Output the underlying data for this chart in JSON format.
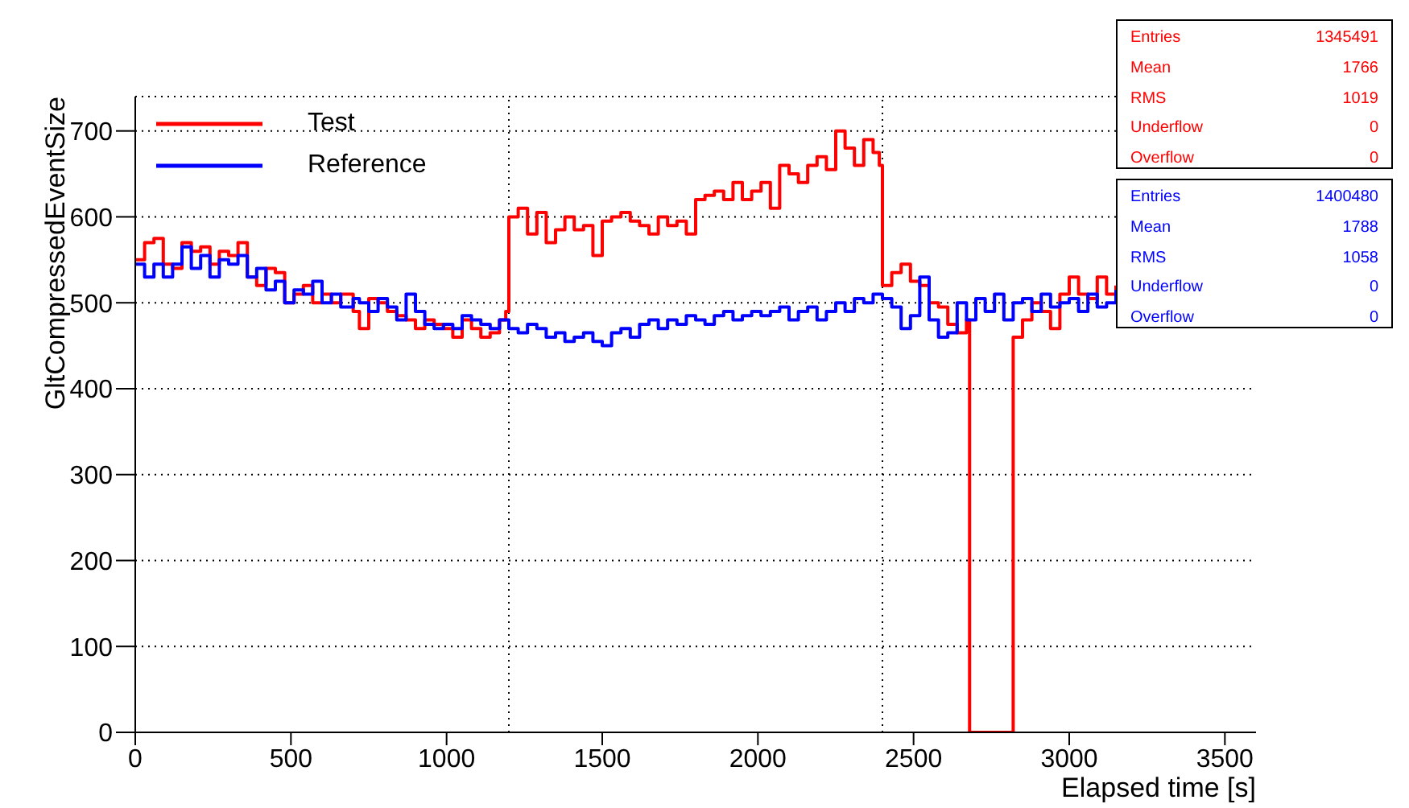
{
  "chart_data": {
    "type": "step",
    "xlabel": "Elapsed time [s]",
    "ylabel": "GltCompressedEventSize",
    "xlim": [
      0,
      3600
    ],
    "xticks": [
      0,
      500,
      1000,
      1500,
      2000,
      2500,
      3000,
      3500
    ],
    "ylim": [
      0,
      740
    ],
    "yticks": [
      0,
      100,
      200,
      300,
      400,
      500,
      600,
      700
    ],
    "grid": "y",
    "legend": "top left",
    "line_style": "solid",
    "marker": "none",
    "ref_lines": [
      {
        "axis": "x",
        "value": 1200,
        "line_style": "dotted",
        "color": "#000000"
      },
      {
        "axis": "x",
        "value": 2400,
        "line_style": "dotted",
        "color": "#000000"
      }
    ],
    "annotations": [
      "Entries 1345491",
      "Mean 1766",
      "RMS 1019",
      "Underflow 0",
      "Overflow 0",
      "Entries 1400480",
      "Mean 1788",
      "RMS 1058",
      "Underflow 0",
      "Overflow 0"
    ],
    "series": [
      {
        "name": "Test",
        "color": "#ff0000",
        "x": [
          0,
          30,
          60,
          90,
          120,
          150,
          180,
          210,
          240,
          270,
          300,
          330,
          360,
          390,
          420,
          450,
          480,
          510,
          540,
          570,
          600,
          630,
          660,
          700,
          720,
          750,
          780,
          810,
          840,
          870,
          900,
          930,
          960,
          990,
          1020,
          1050,
          1080,
          1110,
          1140,
          1170,
          1190,
          1200,
          1230,
          1260,
          1290,
          1320,
          1350,
          1380,
          1410,
          1440,
          1470,
          1500,
          1530,
          1560,
          1590,
          1620,
          1650,
          1680,
          1710,
          1740,
          1770,
          1800,
          1830,
          1860,
          1890,
          1920,
          1950,
          1980,
          2010,
          2040,
          2070,
          2100,
          2130,
          2160,
          2190,
          2220,
          2250,
          2280,
          2310,
          2340,
          2370,
          2390,
          2400,
          2430,
          2460,
          2490,
          2520,
          2550,
          2580,
          2610,
          2640,
          2670,
          2680,
          2820,
          2850,
          2880,
          2910,
          2940,
          2970,
          3000,
          3030,
          3060,
          3090,
          3120,
          3150
        ],
        "values": [
          550,
          570,
          575,
          545,
          540,
          570,
          560,
          565,
          545,
          560,
          555,
          570,
          530,
          520,
          540,
          535,
          500,
          510,
          520,
          500,
          510,
          500,
          510,
          490,
          470,
          505,
          500,
          490,
          485,
          480,
          470,
          480,
          475,
          470,
          460,
          480,
          470,
          460,
          465,
          480,
          490,
          600,
          610,
          580,
          605,
          570,
          585,
          600,
          585,
          590,
          555,
          595,
          600,
          605,
          595,
          590,
          580,
          600,
          590,
          595,
          580,
          620,
          625,
          630,
          620,
          640,
          620,
          630,
          640,
          610,
          660,
          650,
          640,
          660,
          670,
          655,
          700,
          680,
          660,
          690,
          675,
          660,
          520,
          535,
          545,
          525,
          520,
          500,
          495,
          475,
          465,
          480,
          0,
          460,
          480,
          500,
          490,
          470,
          510,
          530,
          510,
          505,
          530,
          510,
          520
        ]
      },
      {
        "name": "Reference",
        "color": "#0000ff",
        "x": [
          0,
          30,
          60,
          90,
          120,
          150,
          180,
          210,
          240,
          270,
          300,
          330,
          360,
          390,
          420,
          450,
          480,
          510,
          540,
          570,
          600,
          630,
          660,
          700,
          720,
          750,
          780,
          810,
          840,
          870,
          900,
          930,
          960,
          990,
          1020,
          1050,
          1080,
          1110,
          1140,
          1170,
          1200,
          1230,
          1260,
          1290,
          1320,
          1350,
          1380,
          1410,
          1440,
          1470,
          1500,
          1530,
          1560,
          1590,
          1620,
          1650,
          1680,
          1710,
          1740,
          1770,
          1800,
          1830,
          1860,
          1890,
          1920,
          1950,
          1980,
          2010,
          2040,
          2070,
          2100,
          2130,
          2160,
          2190,
          2220,
          2250,
          2280,
          2310,
          2340,
          2370,
          2400,
          2430,
          2460,
          2490,
          2520,
          2550,
          2580,
          2610,
          2640,
          2670,
          2700,
          2730,
          2760,
          2790,
          2820,
          2850,
          2880,
          2910,
          2940,
          2970,
          3000,
          3030,
          3060,
          3090,
          3120,
          3150
        ],
        "values": [
          545,
          530,
          545,
          530,
          545,
          565,
          540,
          555,
          530,
          550,
          545,
          555,
          530,
          540,
          515,
          525,
          500,
          515,
          510,
          525,
          500,
          510,
          495,
          505,
          500,
          490,
          505,
          495,
          480,
          510,
          490,
          475,
          470,
          475,
          470,
          485,
          480,
          475,
          470,
          480,
          470,
          465,
          475,
          470,
          460,
          465,
          455,
          460,
          465,
          455,
          450,
          465,
          470,
          460,
          475,
          480,
          470,
          480,
          475,
          485,
          480,
          475,
          485,
          490,
          480,
          485,
          490,
          485,
          490,
          495,
          480,
          490,
          495,
          480,
          490,
          500,
          490,
          505,
          500,
          510,
          505,
          495,
          470,
          485,
          530,
          480,
          460,
          465,
          500,
          480,
          505,
          490,
          510,
          480,
          500,
          505,
          490,
          510,
          495,
          500,
          505,
          490,
          510,
          495,
          500,
          515
        ]
      }
    ]
  }
}
